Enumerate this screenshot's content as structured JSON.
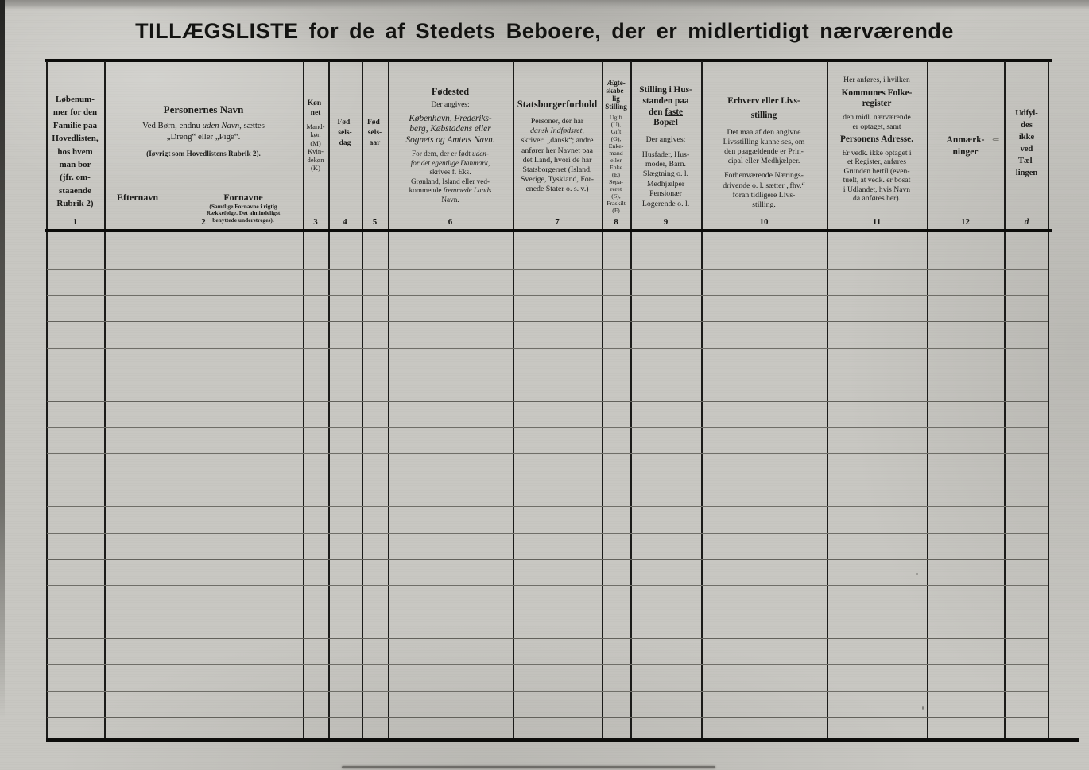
{
  "page": {
    "title": "TILLÆGSLISTE for de af Stedets Beboere, der er midlertidigt nærværende"
  },
  "colors": {
    "paper": "#c8c7c2",
    "ink": "#131311",
    "thin_rule": "#6f6e68"
  },
  "table": {
    "body_row_lines": 18,
    "columns": [
      {
        "number": "1",
        "header_lines": [
          {
            "t": "Løbenum-"
          },
          {
            "t": "mer for den"
          },
          {
            "t": "Familie paa"
          },
          {
            "t": "Hovedlisten,"
          },
          {
            "t": "hos hvem"
          },
          {
            "t": "man bor"
          },
          {
            "t": "(jfr. om-"
          },
          {
            "t": "staaende"
          },
          {
            "t": "Rubrik 2)"
          }
        ]
      },
      {
        "number": "2",
        "header_lines": [
          {
            "t": "Personernes Navn",
            "c": "b t13"
          },
          {
            "t": "",
            "c": "sp6"
          },
          {
            "t": "Ved Børn, endnu ",
            "c": "in"
          },
          {
            "t": "uden Navn",
            "c": "in i"
          },
          {
            "t": ", sættes",
            "c": "in"
          },
          {
            "t": "„Dreng“ eller „Pige“."
          },
          {
            "t": "",
            "c": "sp8"
          },
          {
            "t": "(Iøvrigt som Hovedlistens Rubrik 2).",
            "c": "sm b"
          }
        ],
        "efternavn": "Efternavn",
        "fornavne": "Fornavne",
        "fornavne_note": [
          {
            "t": "(Samtlige Fornavne i rigtig"
          },
          {
            "t": "Rækkefølge.  Det almindeligst"
          },
          {
            "t": "benyttede understreges)."
          }
        ]
      },
      {
        "number": "3",
        "header_lines": [
          {
            "t": "Køn-",
            "c": "b t95"
          },
          {
            "t": "net",
            "c": "b t95"
          },
          {
            "t": "",
            "c": "sp6"
          },
          {
            "t": "Mand-"
          },
          {
            "t": "køn"
          },
          {
            "t": "(M)"
          },
          {
            "t": "Kvin-"
          },
          {
            "t": "dekøn"
          },
          {
            "t": "(K)"
          }
        ]
      },
      {
        "number": "4",
        "header_lines": [
          {
            "t": "Fød-",
            "c": "b"
          },
          {
            "t": "sels-",
            "c": "b"
          },
          {
            "t": "dag",
            "c": "b"
          }
        ]
      },
      {
        "number": "5",
        "header_lines": [
          {
            "t": "Fød-",
            "c": "b"
          },
          {
            "t": "sels-",
            "c": "b"
          },
          {
            "t": "aar",
            "c": "b"
          }
        ]
      },
      {
        "number": "6",
        "header_lines": [
          {
            "t": "Fødested",
            "c": "b t12"
          },
          {
            "t": "",
            "c": "sp4"
          },
          {
            "t": "Der angives:",
            "c": "t95"
          },
          {
            "t": "",
            "c": "sp4"
          },
          {
            "t": "København, Frederiks-",
            "c": "i t11"
          },
          {
            "t": "berg, Købstadens eller",
            "c": "i t11"
          },
          {
            "t": "Sognets og Amtets Navn.",
            "c": "i t11"
          },
          {
            "t": "",
            "c": "sp4"
          },
          {
            "t": "For dem, der er født ",
            "c": "in sm"
          },
          {
            "t": "uden-",
            "c": "in sm i"
          },
          {
            "t": "for det egentlige Danmark,",
            "c": "sm i"
          },
          {
            "t": "skrives f. Eks.",
            "c": "sm"
          },
          {
            "t": "Grønland, Island eller ved-",
            "c": "sm"
          },
          {
            "t": "kommende ",
            "c": "in sm"
          },
          {
            "t": "fremmede Lands",
            "c": "in sm i"
          },
          {
            "t": "Navn.",
            "c": "sm"
          }
        ]
      },
      {
        "number": "7",
        "header_lines": [
          {
            "t": "Statsborgerforhold",
            "c": "b t12"
          },
          {
            "t": "",
            "c": "sp8"
          },
          {
            "t": "Personer, der har"
          },
          {
            "t": "dansk Indfødsret,",
            "c": "i"
          },
          {
            "t": "skriver: „dansk“; andre"
          },
          {
            "t": "anfører her Navnet paa"
          },
          {
            "t": "det Land, hvori de har"
          },
          {
            "t": "Statsborgerret (Island,"
          },
          {
            "t": "Sverige, Tyskland, For-"
          },
          {
            "t": "enede Stater o. s. v.)"
          }
        ]
      },
      {
        "number": "8",
        "header_lines": [
          {
            "t": "Ægte-",
            "c": "b t9"
          },
          {
            "t": "skabe-",
            "c": "b t9"
          },
          {
            "t": "lig",
            "c": "b t9"
          },
          {
            "t": "Stilling",
            "c": "b t9"
          },
          {
            "t": "",
            "c": "sp4"
          },
          {
            "t": "Ugift"
          },
          {
            "t": "(U),"
          },
          {
            "t": "Gift"
          },
          {
            "t": "(G),"
          },
          {
            "t": "Enke-"
          },
          {
            "t": "mand"
          },
          {
            "t": "eller"
          },
          {
            "t": "Enke"
          },
          {
            "t": "(E)"
          },
          {
            "t": "Sepa-"
          },
          {
            "t": "reret"
          },
          {
            "t": "(S),"
          },
          {
            "t": "Fraskilt"
          },
          {
            "t": "(F)"
          }
        ]
      },
      {
        "number": "9",
        "header_lines": [
          {
            "t": "Stilling i Hus-",
            "c": "b t11"
          },
          {
            "t": "standen paa",
            "c": "b t11"
          },
          {
            "t": "den ",
            "c": "in b t11"
          },
          {
            "t": "faste",
            "c": "in b t11 u"
          },
          {
            "t": "Bopæl",
            "c": "b t11"
          },
          {
            "t": "",
            "c": "sp8"
          },
          {
            "t": "Der angives:"
          },
          {
            "t": "",
            "c": "sp6"
          },
          {
            "t": "Husfader, Hus-"
          },
          {
            "t": "moder, Barn."
          },
          {
            "t": "Slægtning o. l."
          },
          {
            "t": "Medhjælper"
          },
          {
            "t": "Pensionær"
          },
          {
            "t": "Logerende o. l."
          }
        ]
      },
      {
        "number": "10",
        "header_lines": [
          {
            "t": "Erhverv eller Livs-",
            "c": "b t11"
          },
          {
            "t": "",
            "c": "sp4"
          },
          {
            "t": "stilling",
            "c": "b t11"
          },
          {
            "t": "",
            "c": "sp8"
          },
          {
            "t": "Det maa af den angivne"
          },
          {
            "t": "Livsstilling kunne ses, om"
          },
          {
            "t": "den paagældende er Prin-"
          },
          {
            "t": "cipal eller Medhjælper."
          },
          {
            "t": "",
            "c": "sp6"
          },
          {
            "t": "Forhenværende Nærings-"
          },
          {
            "t": "drivende o. l. sætter „fhv.“"
          },
          {
            "t": "foran tidligere Livs-"
          },
          {
            "t": "stilling."
          }
        ]
      },
      {
        "number": "11",
        "header_lines": [
          {
            "t": "Her anføres, i hvilken"
          },
          {
            "t": "",
            "c": "sp4"
          },
          {
            "t": "Kommunes Folke-",
            "c": "b t11"
          },
          {
            "t": "register",
            "c": "b t11"
          },
          {
            "t": "",
            "c": "sp4"
          },
          {
            "t": "den midl. nærværende"
          },
          {
            "t": "er optaget, samt"
          },
          {
            "t": "",
            "c": "sp4"
          },
          {
            "t": "Personens Adresse.",
            "c": "b t11"
          },
          {
            "t": "",
            "c": "sp4"
          },
          {
            "t": "Er vedk. ikke optaget i"
          },
          {
            "t": "et Register, anføres"
          },
          {
            "t": "Grunden hertil (even-"
          },
          {
            "t": "tuelt, at vedk. er bosat"
          },
          {
            "t": "i Udlandet, hvis Navn"
          },
          {
            "t": "da anføres her)."
          }
        ]
      },
      {
        "number": "12",
        "header_lines": [
          {
            "t": "Anmærk-",
            "c": "b"
          },
          {
            "t": "ninger",
            "c": "b"
          }
        ]
      },
      {
        "number": "d",
        "header_lines": [
          {
            "t": "Udfyl-"
          },
          {
            "t": "des"
          },
          {
            "t": "ikke"
          },
          {
            "t": "ved"
          },
          {
            "t": "Tæl-"
          },
          {
            "t": "lingen"
          }
        ]
      }
    ]
  },
  "marks": {
    "pencil": "⇐"
  }
}
